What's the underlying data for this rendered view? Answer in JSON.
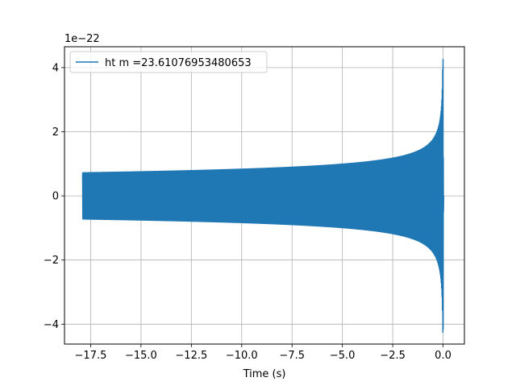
{
  "chart_data": {
    "type": "line",
    "xlabel": "Time (s)",
    "ylabel": "",
    "offset_text": "1e−22",
    "xlim": [
      -18.8,
      1.06
    ],
    "ylim": [
      -4.62,
      4.65
    ],
    "x_ticks": [
      -17.5,
      -15.0,
      -12.5,
      -10.0,
      -7.5,
      -5.0,
      -2.5,
      0.0
    ],
    "x_tick_labels": [
      "−17.5",
      "−15.0",
      "−12.5",
      "−10.0",
      "−7.5",
      "−5.0",
      "−2.5",
      "0.0"
    ],
    "y_ticks": [
      -4,
      -2,
      0,
      2,
      4
    ],
    "y_tick_labels": [
      "−4",
      "−2",
      "0",
      "2",
      "4"
    ],
    "grid": true,
    "legend_position": "top-left",
    "series": [
      {
        "name": "ht m =23.61076953480653",
        "color": "#1f77b4",
        "signal": {
          "kind": "inspiral-chirp",
          "t_start": -17.9,
          "t_merger": 0.0,
          "t_end": 0.05,
          "start_amplitude": 0.72,
          "peak_amplitude": 4.25,
          "min_at_peak": -4.15,
          "ringdown_tail_value": 0.0
        }
      }
    ]
  }
}
